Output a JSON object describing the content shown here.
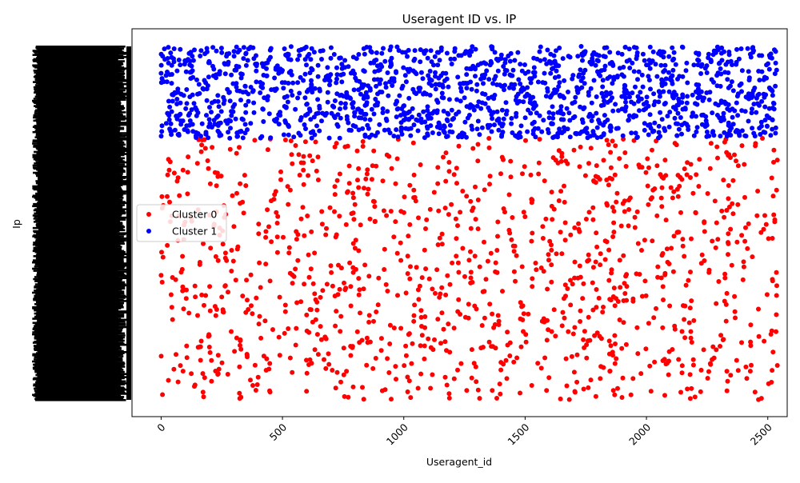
{
  "chart_data": {
    "type": "scatter",
    "title": "Useragent ID vs. IP",
    "xlabel": "Useragent_id",
    "ylabel": "Ip",
    "xlim": [
      -120,
      2580
    ],
    "x_ticks": [
      0,
      500,
      1000,
      1500,
      2000,
      2500
    ],
    "x_tick_labels": [
      "0",
      "500",
      "1000",
      "1500",
      "2000",
      "2500"
    ],
    "x_tick_rotation": 45,
    "ylim": [
      0,
      1
    ],
    "y_tick_labels_note": "dense overlapping categorical IP labels rendered as solid black band",
    "grid": false,
    "legend": {
      "placement": "center-left",
      "entries": [
        "Cluster 0",
        "Cluster 1"
      ]
    },
    "series": [
      {
        "name": "Cluster 0",
        "color": "#ff0000",
        "y_band": [
          0.0,
          0.74
        ],
        "x_range": [
          0,
          2540
        ],
        "points": 1200
      },
      {
        "name": "Cluster 1",
        "color": "#0000ff",
        "y_band": [
          0.74,
          1.0
        ],
        "x_range": [
          0,
          2540
        ],
        "points": 1600
      }
    ]
  }
}
